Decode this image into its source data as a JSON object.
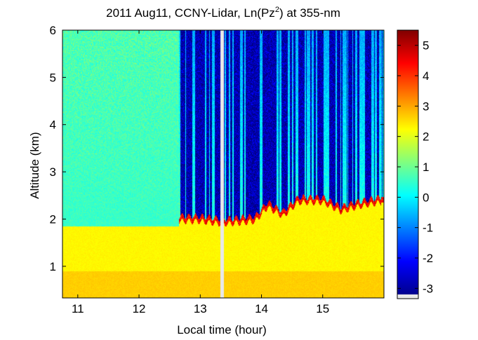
{
  "chart_data": {
    "type": "heatmap",
    "title": "2011 Aug11, CCNY-Lidar, Ln(Pz",
    "title_superscript": "2",
    "title_suffix": ") at 355-nm",
    "xlabel": "Local time (hour)",
    "ylabel": "Altitude (km)",
    "xlim": [
      10.75,
      16.0
    ],
    "ylim": [
      0.33,
      6.0
    ],
    "xticks": [
      11,
      12,
      13,
      14,
      15
    ],
    "yticks": [
      1,
      2,
      3,
      4,
      5,
      6
    ],
    "colorbar": {
      "colormap": "jet",
      "range": [
        -3.2,
        5.5
      ],
      "ticks": [
        -3,
        -2,
        -1,
        0,
        1,
        2,
        3,
        4,
        5
      ]
    },
    "data_gap": [
      13.33,
      13.39
    ],
    "boundary_layer": {
      "below_value": 2.3,
      "top_height_km": [
        {
          "t": 12.65,
          "z": 2.0
        },
        {
          "t": 13.0,
          "z": 2.0
        },
        {
          "t": 13.3,
          "z": 1.95
        },
        {
          "t": 13.5,
          "z": 1.95
        },
        {
          "t": 13.9,
          "z": 2.0
        },
        {
          "t": 14.1,
          "z": 2.3
        },
        {
          "t": 14.35,
          "z": 2.1
        },
        {
          "t": 14.6,
          "z": 2.4
        },
        {
          "t": 15.0,
          "z": 2.4
        },
        {
          "t": 15.3,
          "z": 2.2
        },
        {
          "t": 15.55,
          "z": 2.3
        },
        {
          "t": 15.95,
          "z": 2.4
        }
      ]
    },
    "free_troposphere_value": 0.6,
    "cloud_layer_value": 5.0,
    "cloud_free_columns_value": -2.8
  }
}
